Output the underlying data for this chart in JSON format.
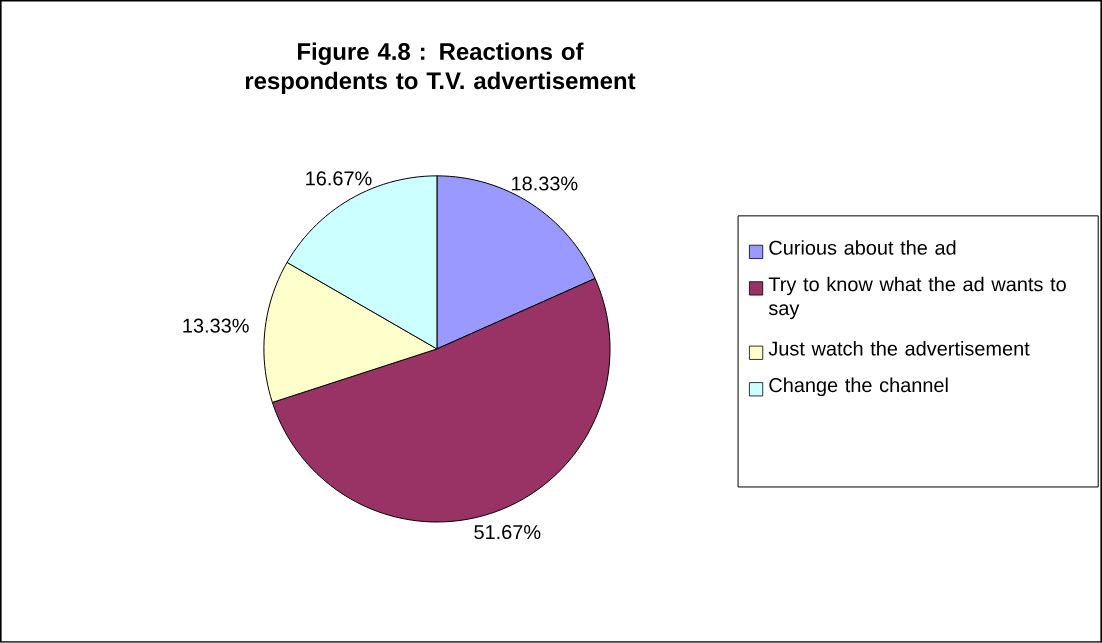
{
  "chart_data": {
    "type": "pie",
    "title": "Figure 4.8 : Reactions of respondents to T.V. advertisement",
    "categories": [
      "Curious about the ad",
      "Try to know what the ad wants to say",
      "Just watch the advertisement",
      "Change the channel"
    ],
    "values": [
      18.33,
      51.67,
      13.33,
      16.67
    ],
    "colors": [
      "#9999ff",
      "#993366",
      "#ffffcc",
      "#ccffff"
    ],
    "value_labels": [
      "18.33%",
      "51.67%",
      "13.33%",
      "16.67%"
    ],
    "legend": "right"
  }
}
